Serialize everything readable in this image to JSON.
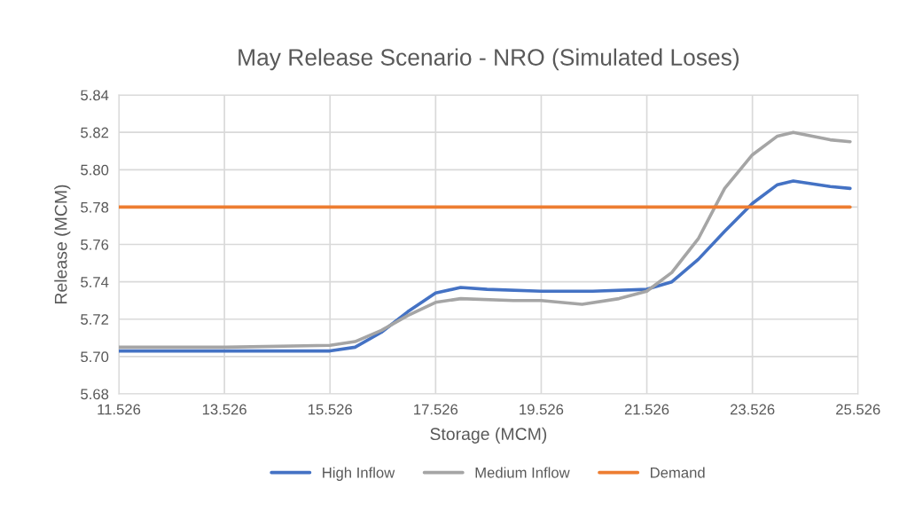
{
  "chart_data": {
    "type": "line",
    "title": "May Release Scenario - NRO (Simulated Loses)",
    "xlabel": "Storage (MCM)",
    "ylabel": "Release (MCM)",
    "xlim": [
      11.526,
      25.526
    ],
    "xticks": [
      {
        "value": 11.526,
        "label": "11.526"
      },
      {
        "value": 13.526,
        "label": "13.526"
      },
      {
        "value": 15.526,
        "label": "15.526"
      },
      {
        "value": 17.526,
        "label": "17.526"
      },
      {
        "value": 19.526,
        "label": "19.526"
      },
      {
        "value": 21.526,
        "label": "21.526"
      },
      {
        "value": 23.526,
        "label": "23.526"
      },
      {
        "value": 25.526,
        "label": "25.526"
      }
    ],
    "ylim": [
      5.68,
      5.84
    ],
    "yticks": [
      {
        "value": 5.68,
        "label": "5.68"
      },
      {
        "value": 5.7,
        "label": "5.70"
      },
      {
        "value": 5.72,
        "label": "5.72"
      },
      {
        "value": 5.74,
        "label": "5.74"
      },
      {
        "value": 5.76,
        "label": "5.76"
      },
      {
        "value": 5.78,
        "label": "5.78"
      },
      {
        "value": 5.8,
        "label": "5.80"
      },
      {
        "value": 5.82,
        "label": "5.82"
      },
      {
        "value": 5.84,
        "label": "5.84"
      }
    ],
    "grid": true,
    "legend": "bottom",
    "line_style": "solid",
    "marker": "none",
    "series": [
      {
        "name": "High Inflow",
        "color": "#4472c4",
        "x": [
          11.526,
          13.526,
          15.526,
          16.0,
          16.5,
          17.0,
          17.526,
          18.0,
          18.5,
          19.526,
          20.5,
          21.526,
          22.0,
          22.5,
          23.0,
          23.526,
          24.0,
          24.3,
          25.0,
          25.376
        ],
        "values": [
          5.703,
          5.703,
          5.703,
          5.705,
          5.713,
          5.724,
          5.734,
          5.737,
          5.736,
          5.735,
          5.735,
          5.736,
          5.74,
          5.752,
          5.767,
          5.782,
          5.792,
          5.794,
          5.791,
          5.79
        ]
      },
      {
        "name": "Medium Inflow",
        "color": "#a5a5a5",
        "x": [
          11.526,
          13.526,
          15.526,
          16.0,
          16.5,
          17.0,
          17.526,
          18.0,
          19.0,
          19.526,
          20.3,
          21.0,
          21.526,
          22.0,
          22.5,
          23.0,
          23.526,
          24.0,
          24.3,
          25.0,
          25.376
        ],
        "values": [
          5.705,
          5.705,
          5.706,
          5.708,
          5.714,
          5.722,
          5.729,
          5.731,
          5.73,
          5.73,
          5.728,
          5.731,
          5.735,
          5.745,
          5.763,
          5.79,
          5.808,
          5.818,
          5.82,
          5.816,
          5.815
        ]
      },
      {
        "name": "Demand",
        "color": "#ed7d31",
        "x": [
          11.526,
          25.376
        ],
        "values": [
          5.78,
          5.78
        ]
      }
    ]
  }
}
